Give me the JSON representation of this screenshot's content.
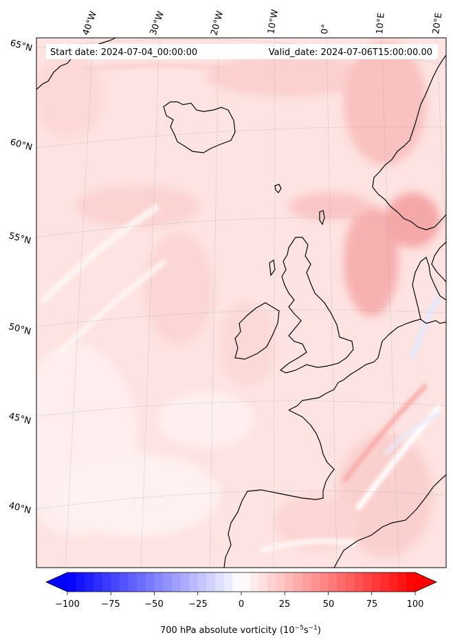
{
  "header": {
    "start_label": "Start date: 2024-07-04_00:00:00",
    "valid_label": "Valid_date: 2024-07-06T15:00:00.00"
  },
  "lon_labels": [
    "40°W",
    "30°W",
    "20°W",
    "10°W",
    "0°",
    "10°E",
    "20°E"
  ],
  "lat_labels": [
    "65°N",
    "60°N",
    "55°N",
    "50°N",
    "45°N",
    "40°N"
  ],
  "colorbar": {
    "ticks": [
      "−100",
      "−75",
      "−50",
      "−25",
      "0",
      "25",
      "50",
      "75",
      "100"
    ],
    "label": "700 hPa absolute vorticity (10",
    "label_exp1": "−5",
    "label_mid": "s",
    "label_exp2": "−1",
    "label_end": ")",
    "min": -100,
    "max": 100,
    "low_color": "#0000ff",
    "mid_color": "#ffffff",
    "high_color": "#ff0000"
  },
  "field": {
    "background_color": "#fde3e1",
    "strong_color": "#f7a8a8",
    "weak_color": "#fff3f2",
    "negative_color": "#dde6ff"
  }
}
